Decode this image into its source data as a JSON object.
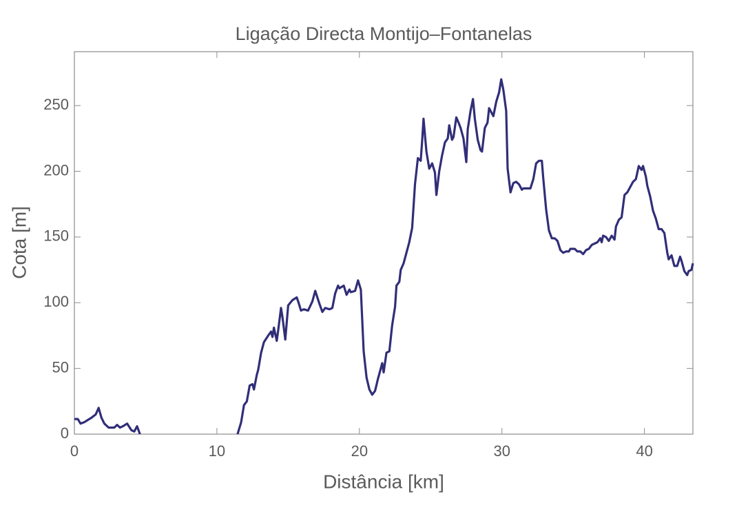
{
  "chart_data": {
    "type": "line",
    "title": "Ligação Directa Montijo–Fontanelas",
    "x_label": "Distância [km]",
    "y_label": "Cota [m]",
    "xlim": [
      0,
      43.4
    ],
    "ylim": [
      0,
      291
    ],
    "xticks": [
      0,
      10,
      20,
      30,
      40
    ],
    "yticks": [
      0,
      50,
      100,
      150,
      200,
      250
    ],
    "series": [
      {
        "color": "#312e78",
        "x": [
          0,
          0.24,
          0.43,
          0.68,
          0.9,
          1.2,
          1.5,
          1.7,
          1.9,
          2.1,
          2.4,
          2.7,
          2.8,
          3.0,
          3.2,
          3.4,
          3.7,
          4.0,
          4.2,
          4.4,
          4.6,
          8,
          11.45,
          11.7,
          11.9,
          12.1,
          12.3,
          12.5,
          12.6,
          12.8,
          12.9,
          13.1,
          13.3,
          13.6,
          13.8,
          13.9,
          14.0,
          14.2,
          14.3,
          14.5,
          14.6,
          14.8,
          15.0,
          15.3,
          15.6,
          15.7,
          15.9,
          16.1,
          16.4,
          16.7,
          16.9,
          17.2,
          17.4,
          17.6,
          17.9,
          18.1,
          18.3,
          18.5,
          18.6,
          18.9,
          19.1,
          19.3,
          19.4,
          19.7,
          19.9,
          20.1,
          20.3,
          20.5,
          20.7,
          20.9,
          21.1,
          21.3,
          21.5,
          21.6,
          21.7,
          21.9,
          22.1,
          22.3,
          22.5,
          22.6,
          22.8,
          22.9,
          23.1,
          23.3,
          23.5,
          23.7,
          23.9,
          24.1,
          24.3,
          24.4,
          24.5,
          24.7,
          24.9,
          25.1,
          25.3,
          25.4,
          25.6,
          25.8,
          26.0,
          26.2,
          26.3,
          26.5,
          26.6,
          26.8,
          26.96,
          27.1,
          27.3,
          27.5,
          27.6,
          27.8,
          27.97,
          28.1,
          28.3,
          28.5,
          28.6,
          28.8,
          28.99,
          29.1,
          29.4,
          29.6,
          29.8,
          29.95,
          30.1,
          30.3,
          30.4,
          30.6,
          30.8,
          31.0,
          31.2,
          31.4,
          31.5,
          31.7,
          32.0,
          32.2,
          32.4,
          32.6,
          32.8,
          32.9,
          33.1,
          33.3,
          33.5,
          33.7,
          33.9,
          34.1,
          34.3,
          34.5,
          34.7,
          34.8,
          35.1,
          35.3,
          35.5,
          35.7,
          35.9,
          36.1,
          36.3,
          36.5,
          36.7,
          36.9,
          37.0,
          37.1,
          37.3,
          37.5,
          37.7,
          37.9,
          38.0,
          38.2,
          38.4,
          38.6,
          38.8,
          39.0,
          39.2,
          39.4,
          39.6,
          39.8,
          39.9,
          40.1,
          40.2,
          40.4,
          40.6,
          40.8,
          41.0,
          41.2,
          41.4,
          41.6,
          41.7,
          41.9,
          42.1,
          42.3,
          42.5,
          42.6,
          42.8,
          43.0,
          43.1,
          43.3,
          43.4
        ],
        "values": [
          11.5,
          11.5,
          8,
          9,
          10.5,
          12.5,
          15,
          20,
          12.5,
          8,
          5,
          5,
          5,
          7,
          5,
          6,
          8,
          3,
          2,
          6,
          0,
          null,
          0,
          9,
          22,
          25,
          37,
          38,
          34,
          45,
          49,
          62,
          70,
          75,
          78,
          74,
          81,
          71,
          79,
          96,
          89,
          72,
          98,
          102,
          104,
          101,
          94,
          95,
          94,
          101,
          109,
          99,
          93,
          96,
          95,
          96,
          107,
          113,
          111,
          113,
          106,
          110,
          108,
          109,
          117,
          110,
          63,
          43,
          34,
          30,
          33,
          42,
          50,
          54,
          47,
          62,
          63,
          83,
          97,
          113,
          116,
          125,
          130,
          138,
          146,
          157,
          190,
          210,
          208,
          223,
          240,
          215,
          202,
          206,
          199,
          182,
          200,
          212,
          222,
          225,
          235,
          224,
          226,
          241,
          237,
          233,
          225,
          207,
          232,
          246,
          255,
          240,
          224,
          216,
          215,
          233,
          237,
          248,
          242,
          253,
          260,
          270,
          262,
          246,
          202,
          184,
          191,
          192,
          190,
          186,
          187,
          187,
          187,
          194,
          206,
          208,
          208,
          195,
          171,
          155,
          149,
          149,
          147,
          140,
          138,
          139,
          139,
          141,
          141,
          139,
          139,
          137,
          140,
          141,
          144,
          145,
          146,
          149,
          146,
          151,
          150,
          147,
          151,
          148,
          158,
          163,
          165,
          182,
          184,
          188,
          192,
          194,
          204,
          201,
          204,
          196,
          189,
          181,
          170,
          164,
          156,
          156,
          153,
          138,
          133,
          136,
          128,
          128,
          135,
          132,
          124,
          121,
          124,
          125,
          130
        ]
      }
    ]
  }
}
